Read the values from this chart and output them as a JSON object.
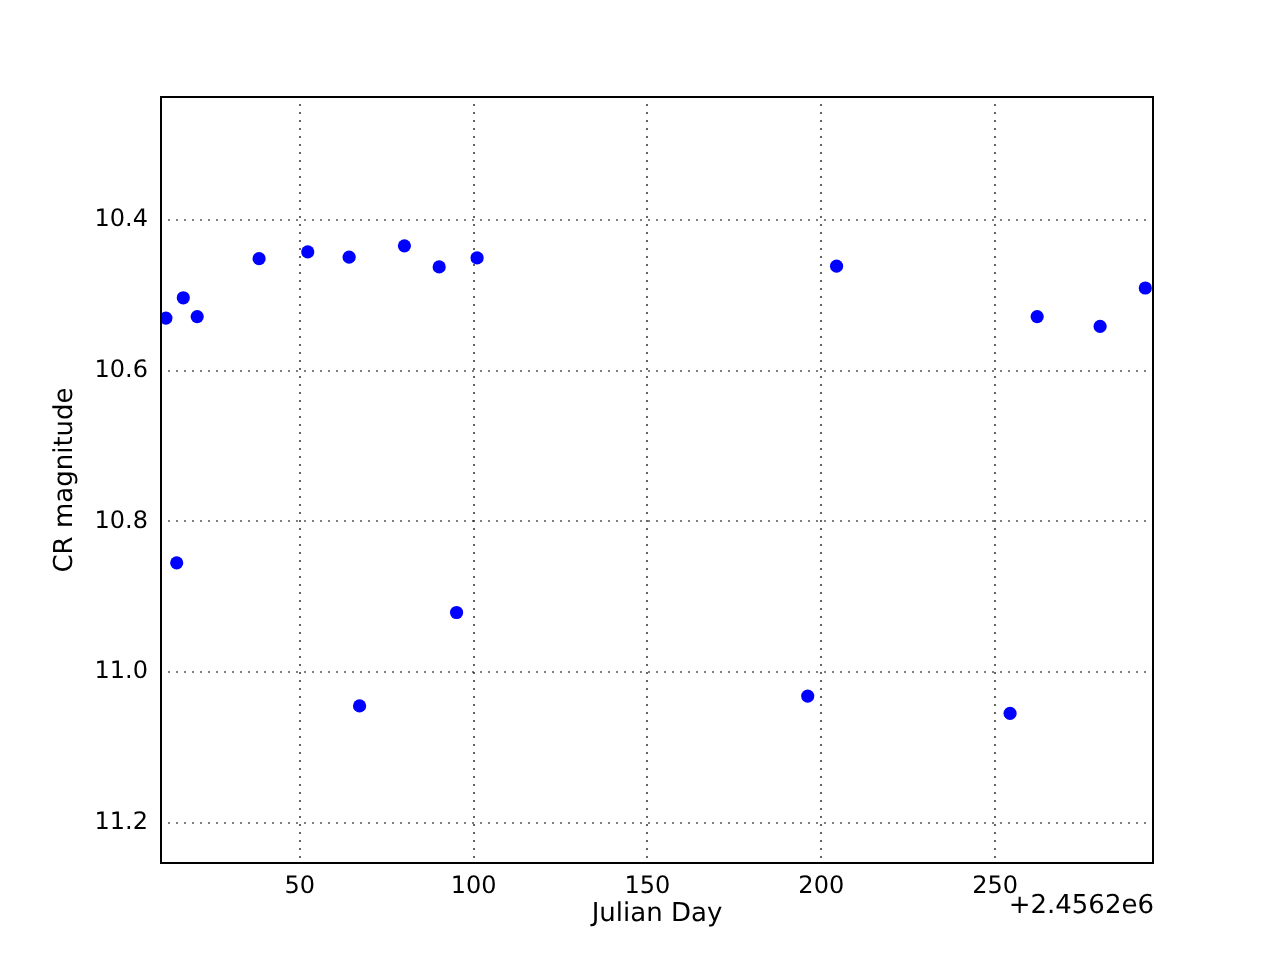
{
  "chart_data": {
    "type": "scatter",
    "xlabel": "Julian Day",
    "ylabel": "CR magnitude",
    "annotations": [
      "+2.4562e6"
    ],
    "x": [
      11.5,
      14.6,
      16.5,
      20.5,
      38.3,
      52.3,
      64.2,
      67.2,
      80.1,
      90.1,
      95.1,
      101.0,
      196.1,
      204.4,
      254.3,
      262.1,
      280.2,
      293.2
    ],
    "series": [
      {
        "color": "#0000ff",
        "values": [
          10.53,
          10.855,
          10.503,
          10.528,
          10.451,
          10.442,
          10.449,
          11.045,
          10.434,
          10.462,
          10.921,
          10.45,
          11.032,
          10.461,
          11.055,
          10.528,
          10.541,
          10.49
        ]
      }
    ],
    "xlim": [
      9.8,
      295.7
    ],
    "xticks": [
      50,
      100,
      150,
      200,
      250
    ],
    "ylim": [
      11.255,
      10.235
    ],
    "yticks": [
      10.4,
      10.6,
      10.8,
      {
        "value": 11,
        "label": "11.0"
      },
      11.2
    ],
    "grid": true,
    "marker": "circle"
  }
}
